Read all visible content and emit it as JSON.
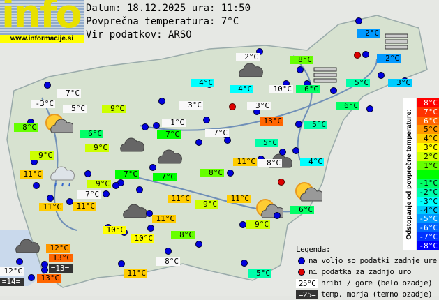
{
  "header": {
    "logo_text": "info",
    "logo_url": "www.informacije.si",
    "date_line": "Datum: 18.12.2025 ura: 11:50",
    "avg_line": "Povprečna temperatura: 7°C",
    "source_line": "Vir podatkov: ARSO"
  },
  "average_temperature": 7,
  "stations": [
    {
      "t": "7°C",
      "type": "mountain"
    },
    {
      "t": "-3°C",
      "type": "mountain"
    },
    {
      "t": "5°C",
      "type": "mountain"
    },
    {
      "t": "9°C",
      "type": "lowland"
    },
    {
      "t": "8°C",
      "type": "lowland"
    },
    {
      "t": "6°C",
      "type": "lowland"
    },
    {
      "t": "9°C",
      "type": "lowland"
    },
    {
      "t": "9°C",
      "type": "lowland"
    },
    {
      "t": "11°C",
      "type": "lowland"
    },
    {
      "t": "7°C",
      "type": "lowland"
    },
    {
      "t": "9°C",
      "type": "lowland"
    },
    {
      "t": "7°C",
      "type": "mountain"
    },
    {
      "t": "11°C",
      "type": "lowland"
    },
    {
      "t": "11°C",
      "type": "lowland"
    },
    {
      "t": "7°C",
      "type": "lowland"
    },
    {
      "t": "1°C",
      "type": "mountain"
    },
    {
      "t": "3°C",
      "type": "mountain"
    },
    {
      "t": "4°C",
      "type": "lowland"
    },
    {
      "t": "2°C",
      "type": "mountain"
    },
    {
      "t": "4°C",
      "type": "lowland"
    },
    {
      "t": "10°C",
      "type": "mountain"
    },
    {
      "t": "3°C",
      "type": "mountain"
    },
    {
      "t": "13°C",
      "type": "lowland"
    },
    {
      "t": "7°C",
      "type": "mountain"
    },
    {
      "t": "5°C",
      "type": "lowland"
    },
    {
      "t": "8°C",
      "type": "lowland"
    },
    {
      "t": "6°C",
      "type": "lowland"
    },
    {
      "t": "5°C",
      "type": "lowland"
    },
    {
      "t": "3°C",
      "type": "lowland"
    },
    {
      "t": "2°C",
      "type": "lowland"
    },
    {
      "t": "2°C",
      "type": "lowland"
    },
    {
      "t": "6°C",
      "type": "lowland"
    },
    {
      "t": "5°C",
      "type": "lowland"
    },
    {
      "t": "4°C",
      "type": "lowland"
    },
    {
      "t": "8°C",
      "type": "mountain"
    },
    {
      "t": "11°C",
      "type": "lowland"
    },
    {
      "t": "8°C",
      "type": "lowland"
    },
    {
      "t": "7°C",
      "type": "lowland"
    },
    {
      "t": "11°C",
      "type": "lowland"
    },
    {
      "t": "9°C",
      "type": "lowland"
    },
    {
      "t": "11°C",
      "type": "lowland"
    },
    {
      "t": "6°C",
      "type": "lowland"
    },
    {
      "t": "9°C",
      "type": "lowland"
    },
    {
      "t": "11°C",
      "type": "lowland"
    },
    {
      "t": "10°C",
      "type": "lowland"
    },
    {
      "t": "10°C",
      "type": "lowland"
    },
    {
      "t": "8°C",
      "type": "lowland"
    },
    {
      "t": "12°C",
      "type": "lowland"
    },
    {
      "t": "13°C",
      "type": "lowland"
    },
    {
      "t": "=13=",
      "type": "sea"
    },
    {
      "t": "12°C",
      "type": "mountain"
    },
    {
      "t": "=14=",
      "type": "sea"
    },
    {
      "t": "13°C",
      "type": "lowland"
    },
    {
      "t": "8°C",
      "type": "mountain"
    },
    {
      "t": "11°C",
      "type": "lowland"
    },
    {
      "t": "5°C",
      "type": "lowland"
    }
  ],
  "weather_icons": [
    "sun-cloud",
    "cloud",
    "cloud",
    "cloud",
    "cloud",
    "rain-cloud",
    "cloud",
    "sun-cloud",
    "sun-cloud",
    "cloud",
    "fog",
    "fog"
  ],
  "scale": {
    "title": "Odstopanje od povprečne temperature:",
    "items": [
      {
        "label": "8°C",
        "color": "#ff0000"
      },
      {
        "label": "7°C",
        "color": "#ff3300"
      },
      {
        "label": "6°C",
        "color": "#ff6600"
      },
      {
        "label": "5°C",
        "color": "#ff9900"
      },
      {
        "label": "4°C",
        "color": "#ffcc00"
      },
      {
        "label": "3°C",
        "color": "#ffff00"
      },
      {
        "label": "2°C",
        "color": "#ccff00"
      },
      {
        "label": "1°C",
        "color": "#66ff00"
      },
      {
        "label": "",
        "color": "#00ff00"
      },
      {
        "label": "-1°C",
        "color": "#00ff66"
      },
      {
        "label": "-2°C",
        "color": "#00ffaa"
      },
      {
        "label": "-3°C",
        "color": "#00ffff"
      },
      {
        "label": "-4°C",
        "color": "#00ccff"
      },
      {
        "label": "-5°C",
        "color": "#0099ff"
      },
      {
        "label": "-6°C",
        "color": "#0066ff"
      },
      {
        "label": "-7°C",
        "color": "#0033ff"
      },
      {
        "label": "-8°C",
        "color": "#0000ff"
      }
    ]
  },
  "legend": {
    "title": "Legenda:",
    "available": "na voljo so podatki zadnje ure",
    "missing": "ni podatka za zadnjo uro",
    "mountain_sample": "25°C",
    "mountain_text": "hribi / gore (belo ozadje)",
    "sea_sample": "=25=",
    "sea_text": "temp. morja (temno ozadje)",
    "available_color": "#0000dd",
    "missing_color": "#dd0000"
  }
}
